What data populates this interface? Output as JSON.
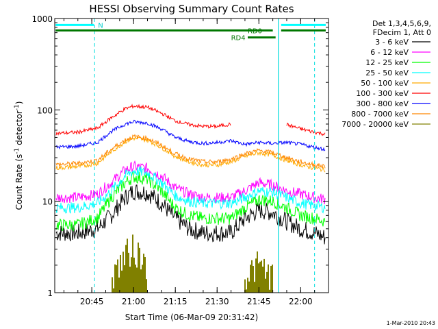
{
  "chart_data": {
    "type": "line",
    "title": "HESSI Observing Summary Count Rates",
    "xlabel": "Start Time (06-Mar-09 20:31:42)",
    "ylabel_main": "Count Rate (s",
    "ylabel_sup1": "-1",
    "ylabel_mid": " detector",
    "ylabel_sup2": "-1",
    "ylabel_end": ")",
    "yscale": "log",
    "ylim": [
      1,
      1000
    ],
    "xlim": [
      "20:31:42",
      "22:10"
    ],
    "x_ticks": [
      "20:45",
      "21:00",
      "21:15",
      "21:30",
      "21:45",
      "22:00"
    ],
    "y_ticks": [
      "1",
      "10",
      "100",
      "1000"
    ],
    "legend_header": [
      "Det 1,3,4,5,6,9,",
      "FDecim 1, Att 0"
    ],
    "legend_position": "right",
    "series": [
      {
        "name": "3 - 6 keV",
        "color": "#000000",
        "x": [
          "20:31",
          "20:40",
          "20:47",
          "20:52",
          "20:57",
          "21:00",
          "21:05",
          "21:10",
          "21:15",
          "21:20",
          "21:25",
          "21:30",
          "21:35",
          "21:40",
          "21:45",
          "21:50",
          "21:55",
          "22:00",
          "22:05",
          "22:09"
        ],
        "y": [
          4.5,
          4.5,
          5,
          7,
          11,
          13,
          12.5,
          9.5,
          6.5,
          5,
          4.5,
          4.5,
          4.5,
          6.5,
          8,
          7.5,
          6,
          5,
          4.5,
          4
        ]
      },
      {
        "name": "6 - 12 keV",
        "color": "#ff00ff",
        "x": [
          "20:31",
          "20:40",
          "20:47",
          "20:52",
          "20:57",
          "21:00",
          "21:05",
          "21:10",
          "21:15",
          "21:20",
          "21:25",
          "21:30",
          "21:35",
          "21:40",
          "21:45",
          "21:50",
          "21:55",
          "22:00",
          "22:05",
          "22:09"
        ],
        "y": [
          11,
          11,
          12,
          16,
          22,
          24,
          23,
          19,
          14,
          12,
          11,
          11,
          11,
          13,
          16,
          15,
          13,
          12,
          11,
          10.5
        ]
      },
      {
        "name": "12 - 25 keV",
        "color": "#00ff00",
        "x": [
          "20:31",
          "20:40",
          "20:47",
          "20:52",
          "20:57",
          "21:00",
          "21:05",
          "21:10",
          "21:15",
          "21:20",
          "21:25",
          "21:30",
          "21:35",
          "21:40",
          "21:45",
          "21:50",
          "21:55",
          "22:00",
          "22:05",
          "22:09"
        ],
        "y": [
          5.5,
          5.5,
          6.5,
          11,
          16,
          18.5,
          17.5,
          13,
          8.5,
          7,
          6.5,
          6.5,
          6.5,
          8.5,
          10.5,
          10,
          8.5,
          7,
          6.5,
          6
        ]
      },
      {
        "name": "25 - 50 keV",
        "color": "#00ffff",
        "x": [
          "20:31",
          "20:40",
          "20:47",
          "20:52",
          "20:57",
          "21:00",
          "21:05",
          "21:10",
          "21:15",
          "21:20",
          "21:25",
          "21:30",
          "21:35",
          "21:40",
          "21:45",
          "21:50",
          "21:55",
          "22:00",
          "22:05",
          "22:09"
        ],
        "y": [
          8.5,
          8.5,
          9.5,
          13,
          19,
          21.5,
          20.5,
          16,
          11.5,
          10,
          9.5,
          9.5,
          9.5,
          11,
          13,
          12.5,
          11,
          9.5,
          9,
          8.5
        ]
      },
      {
        "name": "50 - 100 keV",
        "color": "#ffaa00",
        "x": [
          "20:31",
          "20:40",
          "20:47",
          "20:52",
          "20:57",
          "21:00",
          "21:05",
          "21:10",
          "21:15",
          "21:20",
          "21:25",
          "21:30",
          "21:35",
          "21:40",
          "21:45",
          "21:50",
          "21:55",
          "22:00",
          "22:05",
          "22:09"
        ],
        "y": [
          23,
          24,
          26,
          35,
          45,
          49,
          47,
          39,
          31,
          27,
          25,
          25,
          27,
          31,
          34,
          32,
          28,
          25,
          23,
          22
        ]
      },
      {
        "name": "100 - 300 keV",
        "color": "#ff0000",
        "x": [
          "20:31",
          "20:40",
          "20:47",
          "20:52",
          "20:57",
          "21:00",
          "21:05",
          "21:10",
          "21:15",
          "21:20",
          "21:25",
          "21:30",
          "21:35",
          "21:40",
          "21:45",
          "21:50",
          "21:55",
          "22:00",
          "22:05",
          "22:09"
        ],
        "y": [
          55,
          57,
          63,
          82,
          103,
          110,
          107,
          92,
          76,
          69,
          66,
          66,
          70,
          null,
          null,
          null,
          69,
          62,
          57,
          54
        ]
      },
      {
        "name": "300 - 800 keV",
        "color": "#0000ff",
        "x": [
          "20:31",
          "20:40",
          "20:47",
          "20:52",
          "20:57",
          "21:00",
          "21:05",
          "21:10",
          "21:15",
          "21:20",
          "21:25",
          "21:30",
          "21:35",
          "21:40",
          "21:45",
          "21:50",
          "21:55",
          "22:00",
          "22:05",
          "22:09"
        ],
        "y": [
          39,
          40,
          44,
          58,
          70,
          74,
          72,
          62,
          50,
          45,
          43,
          44,
          46,
          42,
          44,
          43,
          44,
          42,
          39,
          37
        ]
      },
      {
        "name": "800 - 7000 keV",
        "color": "#ff8800",
        "x": [
          "20:31",
          "20:40",
          "20:47",
          "20:52",
          "20:57",
          "21:00",
          "21:05",
          "21:10",
          "21:15",
          "21:20",
          "21:25",
          "21:30",
          "21:35",
          "21:40",
          "21:45",
          "21:50",
          "21:55",
          "22:00",
          "22:05",
          "22:09"
        ],
        "y": [
          25,
          26,
          28,
          37,
          47,
          51,
          49,
          41,
          33,
          29,
          27,
          27,
          29,
          33,
          36,
          34,
          30,
          27,
          25,
          24
        ]
      },
      {
        "name": "7000 - 20000 keV",
        "color": "#808000",
        "x": [
          "20:31",
          "20:40",
          "20:47",
          "20:52",
          "20:57",
          "21:00",
          "21:05",
          "21:10",
          "21:15",
          "21:20",
          "21:25",
          "21:30",
          "21:35",
          "21:40",
          "21:45",
          "21:50",
          "21:55",
          "22:00",
          "22:05",
          "22:09"
        ],
        "y": [
          null,
          null,
          null,
          1.5,
          2.5,
          3,
          2,
          null,
          null,
          null,
          null,
          null,
          null,
          1.5,
          2,
          1.5,
          null,
          null,
          null,
          null
        ]
      }
    ],
    "annotations": {
      "N_label": "N",
      "RD0_label": "RD0",
      "RD4_label": "RD4"
    },
    "date_stamp": "1-Mar-2010 20:43"
  }
}
